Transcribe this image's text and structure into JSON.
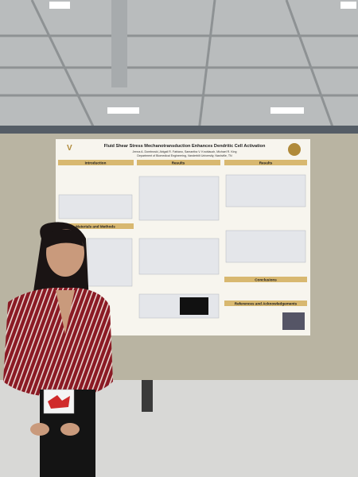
{
  "poster": {
    "title": "Fluid Shear Stress Mechanotransduction Enhances Dendritic Cell Activation",
    "authors": "Jenna A. Dombroski, Abigail R. Fabiano, Samantha V. Knoblauch, Michael R. King",
    "affiliation": "Department of Biomedical Engineering, Vanderbilt University, Nashville, TN",
    "sections": [
      "Introduction",
      "Materials and Methods",
      "Results",
      "Results",
      "Conclusions",
      "References and Acknowledgements"
    ]
  }
}
